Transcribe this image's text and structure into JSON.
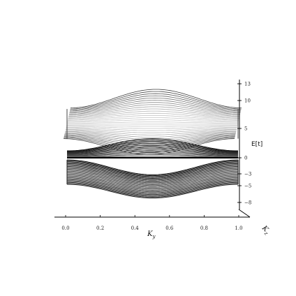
{
  "chart_data": {
    "type": "line",
    "title": "",
    "xlabel": "K_y",
    "xlabel_main": "K",
    "xlabel_sub": "y",
    "depth_label": "K_z",
    "depth_label_main": "K",
    "depth_label_sub": "z",
    "zlabel": "E[t]",
    "x_ticks": [
      "0.0",
      "0.2",
      "0.4",
      "0.6",
      "0.8",
      "1.0"
    ],
    "x_tick_values": [
      0.0,
      0.2,
      0.4,
      0.6,
      0.8,
      1.0
    ],
    "z_ticks": [
      "13",
      "10",
      "5",
      "0",
      "−3",
      "−5",
      "−8"
    ],
    "z_tick_values": [
      13,
      10,
      5,
      0,
      -3,
      -5,
      -8
    ],
    "xlim": [
      0.0,
      1.0
    ],
    "zlim": [
      -9,
      14
    ],
    "grid": false,
    "view": "3d-surface-band-structure",
    "series": [
      {
        "role": "upper-band",
        "x": [
          0.0,
          0.25,
          0.5,
          0.75,
          1.0
        ],
        "top": [
          9.2,
          11.0,
          13.0,
          11.0,
          9.2
        ],
        "bottom": [
          3.6,
          2.0,
          0.5,
          2.0,
          3.6
        ]
      },
      {
        "role": "upper-sheet",
        "x": [
          0.0,
          0.25,
          0.5,
          0.75,
          1.0
        ],
        "top": [
          1.0,
          2.5,
          3.8,
          2.5,
          1.0
        ],
        "bottom": [
          0.0,
          0.0,
          0.0,
          0.0,
          0.0
        ]
      },
      {
        "role": "lower-band",
        "x": [
          0.0,
          0.25,
          0.5,
          0.75,
          1.0
        ],
        "top": [
          -0.2,
          -1.5,
          -3.0,
          -1.5,
          -0.2
        ],
        "bottom": [
          -4.5,
          -6.0,
          -7.5,
          -6.0,
          -4.5
        ]
      }
    ]
  }
}
